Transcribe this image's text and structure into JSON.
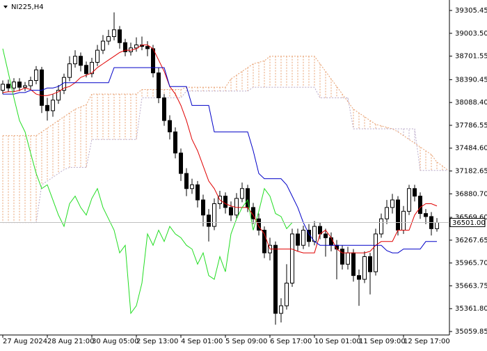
{
  "chart_data": {
    "type": "candlestick",
    "title": "NI225,H4",
    "categories": [
      "27 Aug 2024",
      null,
      null,
      null,
      null,
      null,
      null,
      null,
      "28 Aug 21:00",
      null,
      null,
      null,
      null,
      null,
      null,
      null,
      "30 Aug 05:00",
      null,
      null,
      null,
      null,
      null,
      null,
      null,
      "2 Sep 13:00",
      null,
      null,
      null,
      null,
      null,
      null,
      null,
      "4 Sep 01:00",
      null,
      null,
      null,
      null,
      null,
      null,
      null,
      "5 Sep 09:00",
      null,
      null,
      null,
      null,
      null,
      null,
      null,
      "6 Sep 17:00",
      null,
      null,
      null,
      null,
      null,
      null,
      null,
      "10 Sep 01:00",
      null,
      null,
      null,
      null,
      null,
      null,
      null,
      "11 Sep 09:00",
      null,
      null,
      null,
      null,
      null,
      null,
      null,
      "12 Sep 17:00",
      null,
      null,
      null,
      null,
      null,
      null,
      null,
      null
    ],
    "open": [
      38250,
      38330,
      38280,
      38360,
      38290,
      38310,
      38380,
      38520,
      38050,
      37980,
      38120,
      38250,
      38420,
      38600,
      38700,
      38580,
      38470,
      38620,
      38780,
      38900,
      38960,
      39050,
      38880,
      38760,
      38810,
      38850,
      38830,
      38800,
      38480,
      38150,
      37850,
      37700,
      37420,
      37150,
      36950,
      37000,
      36800,
      36600,
      36450,
      36750,
      36850,
      36700,
      36600,
      36820,
      36950,
      36700,
      36550,
      36400,
      36100,
      36200,
      35300,
      35400,
      35700,
      36350,
      36200,
      36400,
      36250,
      36450,
      36350,
      36300,
      36200,
      36150,
      35950,
      36100,
      35800,
      35750,
      36050,
      35850,
      36350,
      36550,
      36700,
      36800,
      36400,
      36650,
      36950,
      36850,
      36620,
      36580,
      36420,
      null,
      null
    ],
    "high": [
      38380,
      38390,
      38410,
      38410,
      38360,
      38430,
      38570,
      38560,
      38150,
      38200,
      38320,
      38470,
      38700,
      38780,
      38750,
      38630,
      38680,
      38850,
      38980,
      39050,
      39280,
      39100,
      38930,
      38880,
      38950,
      38960,
      38900,
      38850,
      38550,
      38200,
      37920,
      37760,
      37480,
      37220,
      37080,
      37050,
      36870,
      36680,
      36820,
      36920,
      36900,
      36780,
      36890,
      37030,
      37000,
      36760,
      36620,
      36450,
      36300,
      36250,
      35500,
      35950,
      36420,
      36420,
      36460,
      36480,
      36520,
      36500,
      36420,
      36370,
      36270,
      36200,
      36180,
      36150,
      35880,
      36120,
      36100,
      36420,
      36620,
      36800,
      36880,
      36850,
      36720,
      37000,
      37000,
      36900,
      36680,
      36640,
      36560,
      null,
      null
    ],
    "low": [
      38200,
      38230,
      38230,
      38240,
      38240,
      38260,
      38330,
      37950,
      37850,
      37900,
      38070,
      38200,
      38370,
      38550,
      38500,
      38420,
      38420,
      38570,
      38730,
      38850,
      38910,
      38800,
      38700,
      38710,
      38760,
      38780,
      38700,
      38420,
      38080,
      37780,
      37600,
      37350,
      37050,
      36850,
      36880,
      36700,
      36450,
      36250,
      36400,
      36680,
      36620,
      36520,
      36550,
      36770,
      36640,
      36480,
      36330,
      36030,
      36000,
      35150,
      35180,
      35350,
      35650,
      36120,
      36150,
      36180,
      36200,
      36280,
      36050,
      36120,
      35750,
      35880,
      35880,
      35720,
      35400,
      35700,
      35550,
      35800,
      36300,
      36480,
      36620,
      36330,
      36350,
      36600,
      36780,
      36550,
      36480,
      36330,
      36380,
      null,
      null
    ],
    "close": [
      38330,
      38280,
      38360,
      38290,
      38310,
      38380,
      38520,
      38050,
      37980,
      38120,
      38250,
      38420,
      38600,
      38700,
      38580,
      38470,
      38620,
      38780,
      38900,
      38960,
      39050,
      38880,
      38760,
      38810,
      38850,
      38830,
      38800,
      38480,
      38150,
      37850,
      37700,
      37420,
      37150,
      36950,
      37000,
      36800,
      36600,
      36450,
      36750,
      36850,
      36700,
      36600,
      36820,
      36950,
      36700,
      36550,
      36400,
      36100,
      36200,
      35300,
      35400,
      35700,
      36350,
      36200,
      36400,
      36250,
      36450,
      36350,
      36300,
      36200,
      36150,
      35950,
      36100,
      35800,
      35750,
      36050,
      35850,
      36350,
      36550,
      36700,
      36800,
      36400,
      36650,
      36950,
      36850,
      36620,
      36580,
      36420,
      36501,
      null,
      null
    ],
    "lines": [
      {
        "color": "#e00000",
        "values": [
          38220,
          38230,
          38230,
          38250,
          38280,
          38260,
          38200,
          38180,
          38180,
          38200,
          38230,
          38280,
          38300,
          38350,
          38420,
          38450,
          38480,
          38550,
          38600,
          38650,
          38700,
          38750,
          38780,
          38780,
          38800,
          38850,
          38850,
          38800,
          38650,
          38500,
          38300,
          38200,
          38050,
          37850,
          37600,
          37450,
          37250,
          37050,
          36950,
          36800,
          36750,
          36720,
          36700,
          36700,
          36700,
          36600,
          36450,
          36350,
          36150,
          36150,
          36150,
          36150,
          36150,
          36120,
          36100,
          36100,
          36100,
          36350,
          36400,
          36300,
          36150,
          36100,
          36100,
          36100,
          36100,
          36100,
          36120,
          36200,
          36250,
          36250,
          36250,
          36400,
          36400,
          36400,
          36600,
          36700,
          36750,
          36750,
          36720,
          null,
          null
        ]
      },
      {
        "color": "#0000c8",
        "values": [
          38200,
          38200,
          38200,
          38220,
          38220,
          38250,
          38250,
          38250,
          38280,
          38280,
          38300,
          38350,
          38350,
          38350,
          38350,
          38350,
          38350,
          38350,
          38350,
          38350,
          38550,
          38550,
          38550,
          38550,
          38550,
          38550,
          38550,
          38550,
          38550,
          38550,
          38300,
          38300,
          38300,
          38300,
          38050,
          38050,
          38050,
          38050,
          37700,
          37700,
          37700,
          37700,
          37700,
          37700,
          37700,
          37450,
          37150,
          37080,
          37080,
          37080,
          37080,
          37000,
          36850,
          36700,
          36500,
          36350,
          36250,
          36200,
          36200,
          36200,
          36200,
          36200,
          36200,
          36200,
          36200,
          36200,
          36200,
          36200,
          36200,
          36130,
          36100,
          36100,
          36150,
          36150,
          36150,
          36150,
          36250,
          36250,
          36250,
          null,
          null
        ]
      },
      {
        "color": "#22dd22",
        "values": [
          38800,
          38480,
          38150,
          37850,
          37700,
          37420,
          37150,
          36950,
          37000,
          36800,
          36600,
          36450,
          36750,
          36850,
          36700,
          36600,
          36820,
          36950,
          36700,
          36550,
          36400,
          36100,
          36200,
          35300,
          35400,
          35700,
          36350,
          36200,
          36400,
          36250,
          36450,
          36350,
          36300,
          36200,
          36150,
          35950,
          36100,
          35800,
          35750,
          36050,
          35850,
          36350,
          36550,
          36700,
          36800,
          36400,
          36650,
          36950,
          36850,
          36620,
          36580,
          36420,
          36501,
          null,
          null,
          null,
          null,
          null,
          null,
          null,
          null,
          null,
          null,
          null,
          null,
          null,
          null,
          null,
          null,
          null,
          null,
          null,
          null,
          null,
          null,
          null,
          null,
          null,
          null,
          null,
          null
        ]
      }
    ],
    "cloud": {
      "span_a": {
        "color": "#e8a070",
        "values": [
          37650,
          37650,
          37650,
          37650,
          37650,
          37650,
          37650,
          37700,
          37750,
          37800,
          37850,
          37900,
          37950,
          38000,
          38030,
          38060,
          38200,
          38200,
          38200,
          38200,
          38200,
          38200,
          38200,
          38200,
          38200,
          38260,
          38260,
          38260,
          38260,
          38260,
          38260,
          38260,
          38260,
          38290,
          38290,
          38290,
          38290,
          38290,
          38290,
          38290,
          38290,
          38400,
          38450,
          38500,
          38550,
          38600,
          38620,
          38640,
          38700,
          38700,
          38700,
          38700,
          38700,
          38700,
          38700,
          38700,
          38700,
          38600,
          38500,
          38400,
          38300,
          38200,
          38100,
          38000,
          37950,
          37900,
          37850,
          37800,
          37780,
          37760,
          37740,
          37700,
          37650,
          37600,
          37550,
          37500,
          37450,
          37400,
          37300,
          37250,
          37190
        ]
      },
      "span_b": {
        "color": "#b8a8c8",
        "values": [
          36500,
          36500,
          36500,
          36500,
          36500,
          36500,
          36500,
          37000,
          37050,
          37100,
          37150,
          37200,
          37230,
          37230,
          37230,
          37230,
          37600,
          37600,
          37600,
          37600,
          37600,
          37600,
          37600,
          37600,
          37600,
          38150,
          38150,
          38150,
          38150,
          38150,
          38150,
          38150,
          38150,
          38240,
          38240,
          38240,
          38240,
          38240,
          38240,
          38240,
          38240,
          38240,
          38240,
          38240,
          38240,
          38290,
          38290,
          38290,
          38290,
          38290,
          38290,
          38290,
          38290,
          38290,
          38290,
          38290,
          38290,
          38150,
          38150,
          38150,
          38150,
          38150,
          38150,
          37740,
          37740,
          37740,
          37740,
          37740,
          37740,
          37740,
          37740,
          37740,
          37740,
          37740,
          37740,
          37190,
          37190,
          37190,
          37190,
          37190,
          37190
        ]
      }
    },
    "ylim": [
      35023,
      39444
    ],
    "yticks": [
      39305.45,
      {
        "value": 39003.5,
        "label": "39003.50"
      },
      38701.55,
      38390.45,
      {
        "value": 38088.4,
        "label": "38088.40"
      },
      37786.55,
      {
        "value": 37484.6,
        "label": "37484.60"
      },
      37182.65,
      {
        "value": 36880.7,
        "label": "36880.70"
      },
      {
        "value": 36569.6,
        "label": "36569.60"
      },
      36267.65,
      {
        "value": 35965.7,
        "label": "35965.70"
      },
      35663.75,
      {
        "value": 35361.8,
        "label": "35361.80"
      },
      35059.85
    ],
    "last_price": {
      "value": 36501,
      "label": "36501.00"
    }
  }
}
